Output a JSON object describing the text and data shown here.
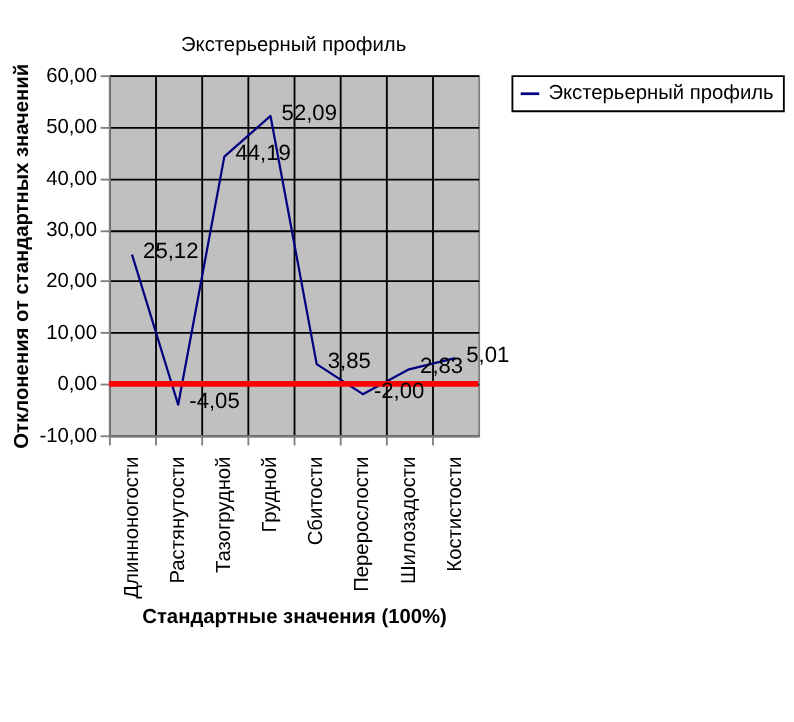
{
  "chart_data": {
    "type": "line",
    "title": "Экстерьерный профиль",
    "xlabel": "Стандартные значения (100%)",
    "ylabel": "Отклонения от стандартных значений",
    "categories": [
      "Длинноногости",
      "Растянутости",
      "Тазогрудной",
      "Грудной",
      "Сбитости",
      "Перерослости",
      "Шилозадости",
      "Костистости"
    ],
    "series": [
      {
        "name": "Экстерьерный профиль",
        "color": "#000080",
        "values": [
          25.12,
          -4.05,
          44.19,
          52.09,
          3.85,
          -2.0,
          2.83,
          5.01
        ],
        "value_labels": [
          "25,12",
          "-4,05",
          "44,19",
          "52,09",
          "3,85",
          "-2,00",
          "2,83",
          "5,01"
        ]
      }
    ],
    "ylim": [
      -10,
      60
    ],
    "yticks": [
      {
        "value": -10,
        "label": "-10,00"
      },
      {
        "value": 0,
        "label": "0,00"
      },
      {
        "value": 10,
        "label": "10,00"
      },
      {
        "value": 20,
        "label": "20,00"
      },
      {
        "value": 30,
        "label": "30,00"
      },
      {
        "value": 40,
        "label": "40,00"
      },
      {
        "value": 50,
        "label": "50,00"
      },
      {
        "value": 60,
        "label": "60,00"
      }
    ],
    "ref_lines": [
      {
        "axis": "y",
        "value": 0,
        "color": "#ff0000"
      }
    ],
    "grid": true,
    "legend": "right",
    "marker": "none",
    "line_style": "solid"
  }
}
